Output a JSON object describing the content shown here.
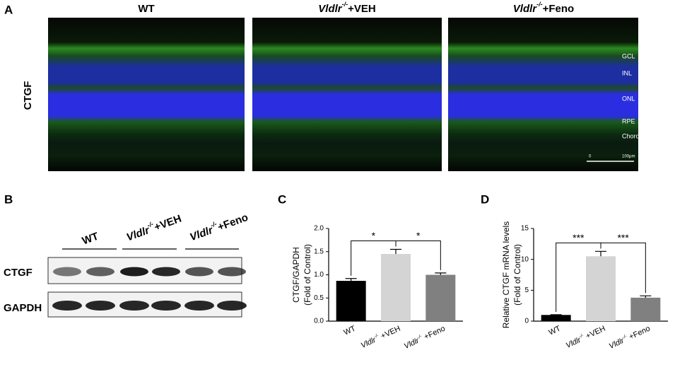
{
  "panels": {
    "a": "A",
    "b": "B",
    "c": "C",
    "d": "D"
  },
  "microscopy": {
    "columns": [
      "WT",
      {
        "gene": "Vldlr",
        "sup": "-/-",
        "rest": "+VEH"
      },
      {
        "gene": "Vldlr",
        "sup": "-/-",
        "rest": "+Feno"
      }
    ],
    "row_label": "CTGF",
    "layers": [
      "GCL",
      "INL",
      "ONL",
      "RPE",
      "Choroid"
    ],
    "scale_bar": {
      "start": "0",
      "end": "100μm"
    }
  },
  "blot": {
    "groups": [
      "WT",
      {
        "gene": "Vldlr",
        "sup": "-/-",
        "rest": "+VEH"
      },
      {
        "gene": "Vldlr",
        "sup": "-/-",
        "rest": "+Feno"
      }
    ],
    "rows": [
      "CTGF",
      "GAPDH"
    ]
  },
  "chart_data": [
    {
      "type": "bar",
      "ylabel": [
        "CTGF/GAPDH",
        "(Fold of Control)"
      ],
      "categories": [
        "WT",
        {
          "gene": "Vldlr",
          "sup": "-/-",
          "rest": " +VEH"
        },
        {
          "gene": "Vldlr",
          "sup": "-/-",
          "rest": " +Feno"
        }
      ],
      "values": [
        0.87,
        1.45,
        1.0
      ],
      "errors": [
        0.05,
        0.1,
        0.04
      ],
      "colors": [
        "#000000",
        "#d4d4d4",
        "#808080"
      ],
      "ylim": [
        0,
        2.0
      ],
      "yticks": [
        {
          "value": 0,
          "label": "0.0"
        },
        0.5,
        {
          "value": 1.0,
          "label": "1.0"
        },
        1.5,
        {
          "value": 2.0,
          "label": "2.0"
        }
      ],
      "annotations": [
        {
          "from": 0,
          "to": 1,
          "label": "*"
        },
        {
          "from": 1,
          "to": 2,
          "label": "*"
        }
      ]
    },
    {
      "type": "bar",
      "ylabel": [
        "Relative CTGF mRNA levels",
        "(Fold of Control)"
      ],
      "categories": [
        "WT",
        {
          "gene": "Vldlr",
          "sup": "-/-",
          "rest": " +VEH"
        },
        {
          "gene": "Vldlr",
          "sup": "-/-",
          "rest": " +Feno"
        }
      ],
      "values": [
        1.0,
        10.5,
        3.8
      ],
      "errors": [
        0.05,
        0.8,
        0.3
      ],
      "colors": [
        "#000000",
        "#d4d4d4",
        "#808080"
      ],
      "ylim": [
        0,
        15
      ],
      "yticks": [
        0,
        5,
        10,
        15
      ],
      "annotations": [
        {
          "from": 0,
          "to": 1,
          "label": "***"
        },
        {
          "from": 1,
          "to": 2,
          "label": "***"
        }
      ]
    }
  ]
}
